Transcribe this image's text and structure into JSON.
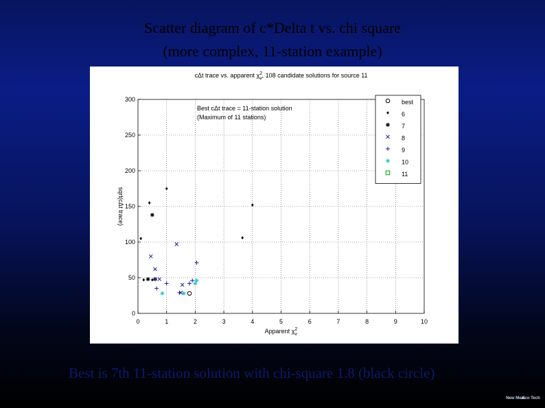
{
  "slide": {
    "title_line1": "Scatter diagram of c*Delta t vs. chi square",
    "title_line2": "(more complex, 11-station example)",
    "footer": "Best is 7th 11-station solution with chi-square 1.8 (black circle)",
    "logo_text": "New Mexico Tech"
  },
  "chart_data": {
    "type": "scatter",
    "title": "cΔt trace vs. apparent χ²ν, 108 candidate solutions for source 11",
    "title_parts": {
      "prefix": "cΔt trace vs. apparent χ",
      "sup": "2",
      "sub": "ν",
      "suffix": ", 108 candidate solutions for source 11"
    },
    "xlabel": "Apparent χ²ν",
    "xlabel_parts": {
      "prefix": "Apparent χ",
      "sup": "2",
      "sub": "ν"
    },
    "ylabel": "sqrt(cΔt trace)",
    "xlim": [
      0,
      10
    ],
    "ylim": [
      0,
      300
    ],
    "xticks": [
      "0",
      "1",
      "2",
      "3",
      "4",
      "5",
      "6",
      "7",
      "8",
      "9",
      "10"
    ],
    "yticks": [
      "0",
      "50",
      "100",
      "150",
      "200",
      "250",
      "300"
    ],
    "grid": "dotted",
    "legend_placement": "top-right",
    "annotation_line1": "Best cΔt trace = 11-station solution",
    "annotation_line2": "(Maximum of 11 stations)",
    "series": [
      {
        "name": "best",
        "marker": "circle",
        "color": "#000000",
        "points": [
          [
            1.8,
            28
          ]
        ]
      },
      {
        "name": "6",
        "marker": "dot",
        "color": "#000000",
        "points": [
          [
            0.1,
            105
          ],
          [
            0.2,
            47
          ],
          [
            0.4,
            155
          ],
          [
            0.5,
            47
          ],
          [
            1.0,
            175
          ],
          [
            3.65,
            106
          ],
          [
            4.0,
            152
          ]
        ]
      },
      {
        "name": "7",
        "marker": "asterisk",
        "color": "#000000",
        "points": [
          [
            0.35,
            48
          ],
          [
            0.5,
            138
          ],
          [
            0.6,
            48
          ]
        ]
      },
      {
        "name": "8",
        "marker": "x",
        "color": "#2020a0",
        "points": [
          [
            0.45,
            80
          ],
          [
            0.6,
            62
          ],
          [
            0.75,
            48
          ],
          [
            1.35,
            97
          ],
          [
            1.55,
            40
          ],
          [
            1.5,
            29
          ]
        ]
      },
      {
        "name": "9",
        "marker": "plus",
        "color": "#1a1a9a",
        "points": [
          [
            0.6,
            48
          ],
          [
            0.65,
            35
          ],
          [
            1.0,
            42
          ],
          [
            1.45,
            29
          ],
          [
            1.8,
            42
          ],
          [
            1.9,
            46
          ],
          [
            2.05,
            71
          ]
        ]
      },
      {
        "name": "10",
        "marker": "asterisk",
        "color": "#35c3c3",
        "points": [
          [
            0.85,
            28
          ],
          [
            1.6,
            28
          ],
          [
            2.0,
            42
          ],
          [
            2.05,
            46
          ]
        ]
      },
      {
        "name": "11",
        "marker": "square",
        "color": "#00a000",
        "points": []
      }
    ]
  }
}
